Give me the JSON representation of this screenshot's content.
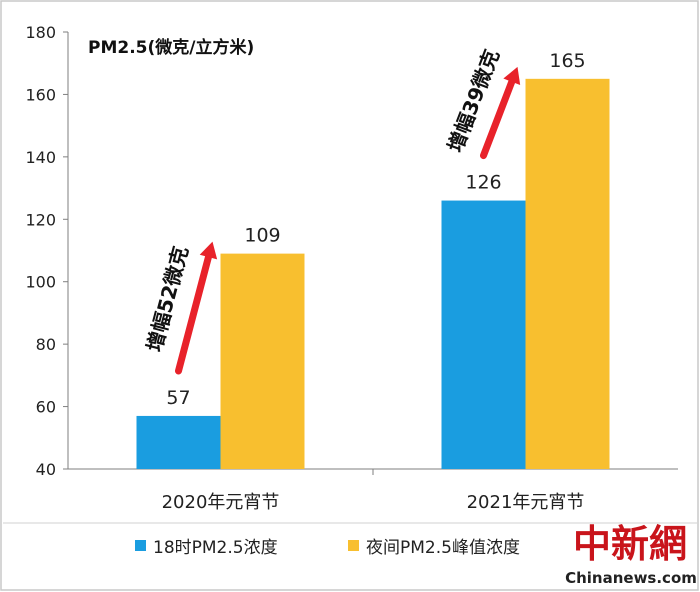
{
  "chart_data": {
    "type": "bar",
    "title": "PM2.5(微克/立方米)",
    "categories": [
      "2020年元宵节",
      "2021年元宵节"
    ],
    "series": [
      {
        "name": "18时PM2.5浓度",
        "color": "#1a9de0",
        "values": [
          57,
          126
        ]
      },
      {
        "name": "夜间PM2.5峰值浓度",
        "color": "#f8bf2f",
        "values": [
          109,
          165
        ]
      }
    ],
    "data_labels": [
      [
        "57",
        "109"
      ],
      [
        "126",
        "165"
      ]
    ],
    "ylim": [
      40,
      180
    ],
    "yticks": [
      40,
      60,
      80,
      100,
      120,
      140,
      160,
      180
    ],
    "legend_position": "bottom",
    "grid": false,
    "annotations": [
      {
        "text": "增幅52微克",
        "category": "2020年元宵节"
      },
      {
        "text": "增幅39微克",
        "category": "2021年元宵节"
      }
    ],
    "arrow_color": "#e8222a"
  },
  "watermark": {
    "logo": "中新網",
    "site": "Chinanews.com",
    "logo_color": "#c9141b"
  }
}
